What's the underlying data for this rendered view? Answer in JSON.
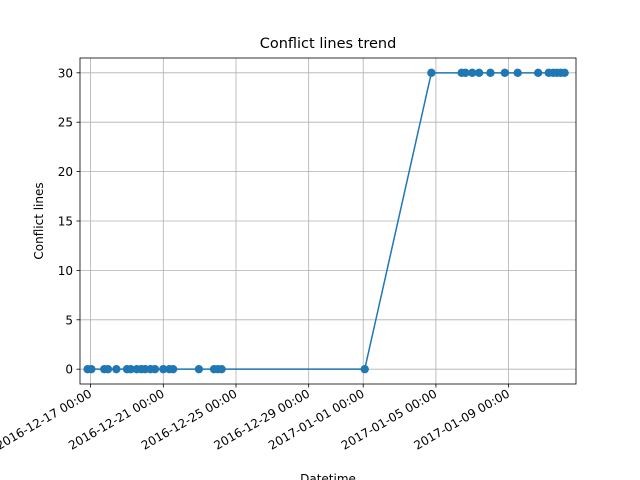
{
  "chart_data": {
    "type": "line",
    "title": "Conflict lines trend",
    "xlabel": "Datetime",
    "ylabel": "Conflict lines",
    "x_type": "datetime",
    "xlim": [
      "2016-12-16T10:00",
      "2017-01-12T17:00"
    ],
    "ylim": [
      -1.5,
      31.5
    ],
    "grid": true,
    "marker": "circle",
    "color": "#1f77b4",
    "x_ticks": [
      {
        "value": "2016-12-17T00:00",
        "label": "2016-12-17 00:00"
      },
      {
        "value": "2016-12-21T00:00",
        "label": "2016-12-21 00:00"
      },
      {
        "value": "2016-12-25T00:00",
        "label": "2016-12-25 00:00"
      },
      {
        "value": "2016-12-29T00:00",
        "label": "2016-12-29 00:00"
      },
      {
        "value": "2017-01-01T00:00",
        "label": "2017-01-01 00:00"
      },
      {
        "value": "2017-01-05T00:00",
        "label": "2017-01-05 00:00"
      },
      {
        "value": "2017-01-09T00:00",
        "label": "2017-01-09 00:00"
      }
    ],
    "y_ticks": [
      0,
      5,
      10,
      15,
      20,
      25,
      30
    ],
    "series": [
      {
        "points": [
          {
            "x": "2016-12-16T20:00",
            "y": 0
          },
          {
            "x": "2016-12-17T01:00",
            "y": 0
          },
          {
            "x": "2016-12-17T18:00",
            "y": 0
          },
          {
            "x": "2016-12-17T23:00",
            "y": 0
          },
          {
            "x": "2016-12-18T10:00",
            "y": 0
          },
          {
            "x": "2016-12-19T00:00",
            "y": 0
          },
          {
            "x": "2016-12-19T05:00",
            "y": 0
          },
          {
            "x": "2016-12-19T13:00",
            "y": 0
          },
          {
            "x": "2016-12-19T19:00",
            "y": 0
          },
          {
            "x": "2016-12-20T00:00",
            "y": 0
          },
          {
            "x": "2016-12-20T07:00",
            "y": 0
          },
          {
            "x": "2016-12-20T13:00",
            "y": 0
          },
          {
            "x": "2016-12-21T00:00",
            "y": 0
          },
          {
            "x": "2016-12-21T08:00",
            "y": 0
          },
          {
            "x": "2016-12-21T13:00",
            "y": 0
          },
          {
            "x": "2016-12-22T23:00",
            "y": 0
          },
          {
            "x": "2016-12-23T19:00",
            "y": 0
          },
          {
            "x": "2016-12-24T00:00",
            "y": 0
          },
          {
            "x": "2016-12-24T05:00",
            "y": 0
          },
          {
            "x": "2017-01-01T02:00",
            "y": 0
          },
          {
            "x": "2017-01-04T18:00",
            "y": 30
          },
          {
            "x": "2017-01-06T10:00",
            "y": 30
          },
          {
            "x": "2017-01-06T15:00",
            "y": 30
          },
          {
            "x": "2017-01-07T00:00",
            "y": 30
          },
          {
            "x": "2017-01-07T09:00",
            "y": 30
          },
          {
            "x": "2017-01-08T00:00",
            "y": 30
          },
          {
            "x": "2017-01-08T19:00",
            "y": 30
          },
          {
            "x": "2017-01-09T12:00",
            "y": 30
          },
          {
            "x": "2017-01-10T15:00",
            "y": 30
          },
          {
            "x": "2017-01-11T05:00",
            "y": 30
          },
          {
            "x": "2017-01-11T11:00",
            "y": 30
          },
          {
            "x": "2017-01-11T16:00",
            "y": 30
          },
          {
            "x": "2017-01-11T21:00",
            "y": 30
          },
          {
            "x": "2017-01-12T02:00",
            "y": 30
          }
        ]
      }
    ]
  }
}
